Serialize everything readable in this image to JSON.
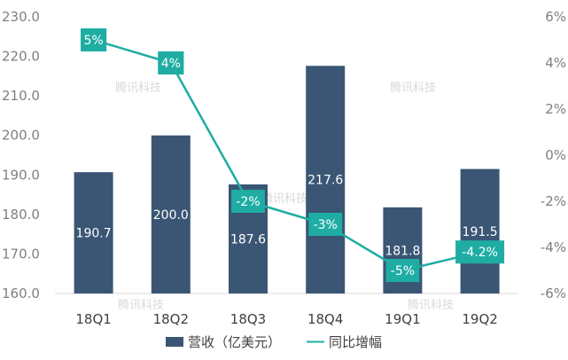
{
  "chart_data": {
    "type": "bar",
    "categories": [
      "18Q1",
      "18Q2",
      "18Q3",
      "18Q4",
      "19Q1",
      "19Q2"
    ],
    "series": [
      {
        "name": "营收（亿美元）",
        "type": "bar",
        "axis": "left",
        "values": [
          190.7,
          200.0,
          187.6,
          217.6,
          181.8,
          191.5
        ],
        "labels": [
          "190.7",
          "200.0",
          "187.6",
          "217.6",
          "181.8",
          "191.5"
        ]
      },
      {
        "name": "同比增幅",
        "type": "line",
        "axis": "right",
        "values": [
          5,
          4,
          -2,
          -3,
          -5,
          -4.2
        ],
        "labels": [
          "5%",
          "4%",
          "-2%",
          "-3%",
          "-5%",
          "-4.2%"
        ]
      }
    ],
    "y_left": {
      "range": [
        160,
        230
      ],
      "ticks": [
        160,
        170,
        180,
        190,
        200,
        210,
        220,
        230
      ],
      "tick_labels": [
        "160.0",
        "170.0",
        "180.0",
        "190.0",
        "200.0",
        "210.0",
        "220.0",
        "230.0"
      ]
    },
    "y_right": {
      "range": [
        -6,
        6
      ],
      "ticks": [
        -6,
        -4,
        -2,
        0,
        2,
        4,
        6
      ],
      "tick_labels": [
        "-6%",
        "-4%",
        "-2%",
        "0%",
        "2%",
        "4%",
        "6%"
      ]
    },
    "grid": false,
    "legend": "bottom",
    "watermark": "腾讯科技",
    "colors": {
      "bar": "#3a5674",
      "line": "#1fada3",
      "label_box": "#1fada3",
      "axis_text": "#7f7f7f"
    }
  }
}
